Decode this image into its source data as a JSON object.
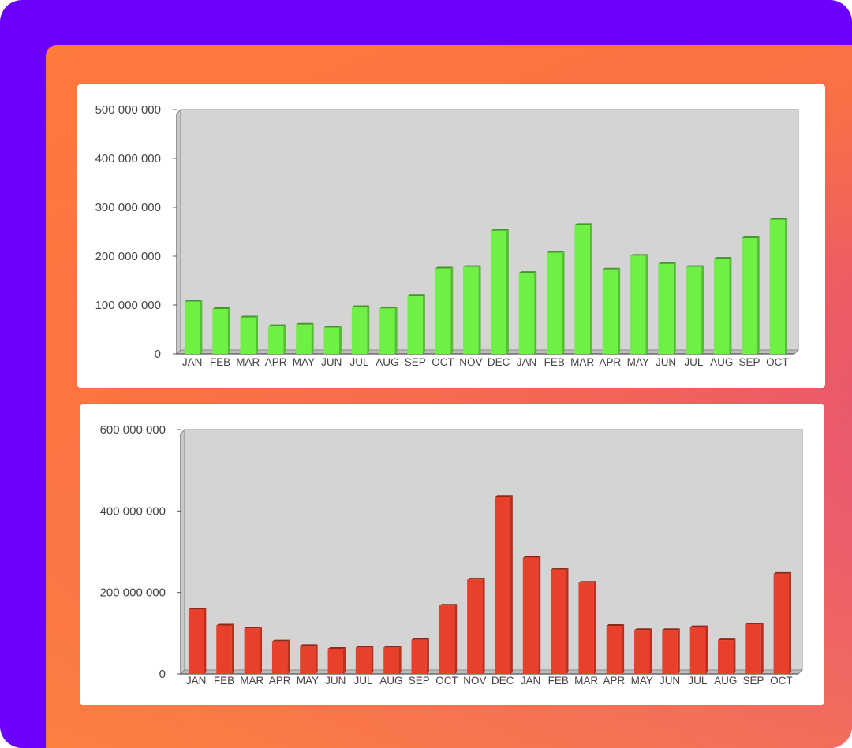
{
  "chart_data": [
    {
      "type": "bar",
      "categories": [
        "JAN",
        "FEB",
        "MAR",
        "APR",
        "MAY",
        "JUN",
        "JUL",
        "AUG",
        "SEP",
        "OCT",
        "NOV",
        "DEC",
        "JAN",
        "FEB",
        "MAR",
        "APR",
        "MAY",
        "JUN",
        "JUL",
        "AUG",
        "SEP",
        "OCT"
      ],
      "values": [
        107000000,
        92000000,
        75000000,
        57000000,
        60000000,
        54000000,
        96000000,
        93000000,
        119000000,
        175000000,
        178000000,
        252000000,
        166000000,
        207000000,
        264000000,
        173000000,
        201000000,
        184000000,
        178000000,
        195000000,
        237000000,
        275000000
      ],
      "yticks": [
        "0",
        "100 000 000",
        "200 000 000",
        "300 000 000",
        "400 000 000",
        "500 000 000"
      ],
      "ylim": [
        0,
        500000000
      ],
      "bar_color": "#6ef044",
      "plot_bg": "#d4d4d4",
      "grid": false
    },
    {
      "type": "bar",
      "categories": [
        "JAN",
        "FEB",
        "MAR",
        "APR",
        "MAY",
        "JUN",
        "JUL",
        "AUG",
        "SEP",
        "OCT",
        "NOV",
        "DEC",
        "JAN",
        "FEB",
        "MAR",
        "APR",
        "MAY",
        "JUN",
        "JUL",
        "AUG",
        "SEP",
        "OCT"
      ],
      "values": [
        158000000,
        119000000,
        112000000,
        80000000,
        69000000,
        62000000,
        65000000,
        65000000,
        84000000,
        168000000,
        232000000,
        435000000,
        285000000,
        256000000,
        224000000,
        118000000,
        108000000,
        108000000,
        115000000,
        83000000,
        122000000,
        246000000
      ],
      "yticks": [
        "0",
        "200 000 000",
        "400 000 000",
        "600 000 000"
      ],
      "ylim": [
        0,
        600000000
      ],
      "bar_color": "#e8402a",
      "plot_bg": "#d4d4d4",
      "grid": false
    }
  ]
}
